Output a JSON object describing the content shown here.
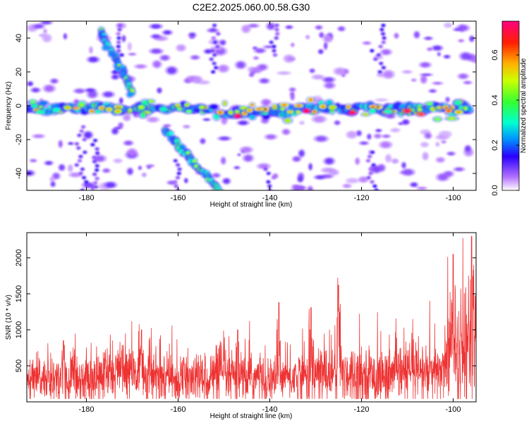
{
  "title": "C2E2.2025.060.00.58.G30",
  "chart_data": [
    {
      "type": "heatmap",
      "xlabel": "Height of straight line (km)",
      "ylabel": "Frequency (Hz)",
      "xlim": [
        -193,
        -95
      ],
      "ylim": [
        -50,
        50
      ],
      "x_ticks": [
        -180,
        -160,
        -140,
        -120,
        -100
      ],
      "y_ticks": [
        -40,
        -20,
        0,
        20,
        40
      ],
      "colorbar": {
        "label": "Normalized spectral amplitude",
        "range": [
          0.0,
          0.75
        ],
        "ticks": [
          0.0,
          0.2,
          0.4,
          0.6
        ],
        "tick_labels": [
          "0.0",
          "0.2",
          "0.4",
          "0.6"
        ]
      },
      "features": {
        "horizontal_band": {
          "frequency_hz": 0,
          "x_range": [
            -193,
            -96
          ]
        },
        "diagonal_upper": {
          "from": [
            -177,
            45
          ],
          "to": [
            -170,
            7
          ]
        },
        "diagonal_lower": {
          "from": [
            -163,
            -14
          ],
          "to": [
            -151,
            -50
          ]
        },
        "peak_points": [
          {
            "x": -147,
            "y": -6,
            "amplitude": 0.7
          },
          {
            "x": -132,
            "y": -3,
            "amplitude": 0.7
          },
          {
            "x": -122,
            "y": -4,
            "amplitude": 0.65
          },
          {
            "x": -110,
            "y": -3,
            "amplitude": 0.65
          },
          {
            "x": -107,
            "y": -5,
            "amplitude": 0.6
          },
          {
            "x": -101,
            "y": -3,
            "amplitude": 0.55
          }
        ]
      },
      "grid": false
    },
    {
      "type": "line",
      "xlabel": "Height of straight line (km)",
      "ylabel": "SNR (10 * v/v)",
      "xlim": [
        -193,
        -95
      ],
      "ylim": [
        0,
        2350
      ],
      "x_ticks": [
        -180,
        -160,
        -140,
        -120,
        -100
      ],
      "y_ticks": [
        500,
        1000,
        1500,
        2000
      ],
      "series": [
        {
          "color": "#ee3333",
          "x": [
            -193,
            -190,
            -187,
            -184,
            -181,
            -178,
            -175,
            -172,
            -169,
            -166,
            -163,
            -160,
            -157,
            -154,
            -151,
            -148,
            -145,
            -142,
            -139,
            -136,
            -133,
            -130,
            -127,
            -124,
            -121,
            -118,
            -115,
            -112,
            -109,
            -106,
            -103,
            -101,
            -99,
            -97,
            -95
          ],
          "values": [
            250,
            330,
            300,
            350,
            320,
            310,
            400,
            420,
            380,
            350,
            330,
            300,
            310,
            340,
            360,
            330,
            320,
            340,
            310,
            330,
            360,
            380,
            400,
            420,
            380,
            360,
            340,
            380,
            420,
            400,
            380,
            700,
            600,
            800,
            900
          ],
          "peaks": [
            {
              "x": -185,
              "y": 850
            },
            {
              "x": -168,
              "y": 1000
            },
            {
              "x": -147,
              "y": 1000
            },
            {
              "x": -138,
              "y": 1380
            },
            {
              "x": -131,
              "y": 1310
            },
            {
              "x": -125,
              "y": 1620
            },
            {
              "x": -100,
              "y": 2050
            },
            {
              "x": -96,
              "y": 2300
            }
          ]
        }
      ],
      "grid": false
    }
  ]
}
